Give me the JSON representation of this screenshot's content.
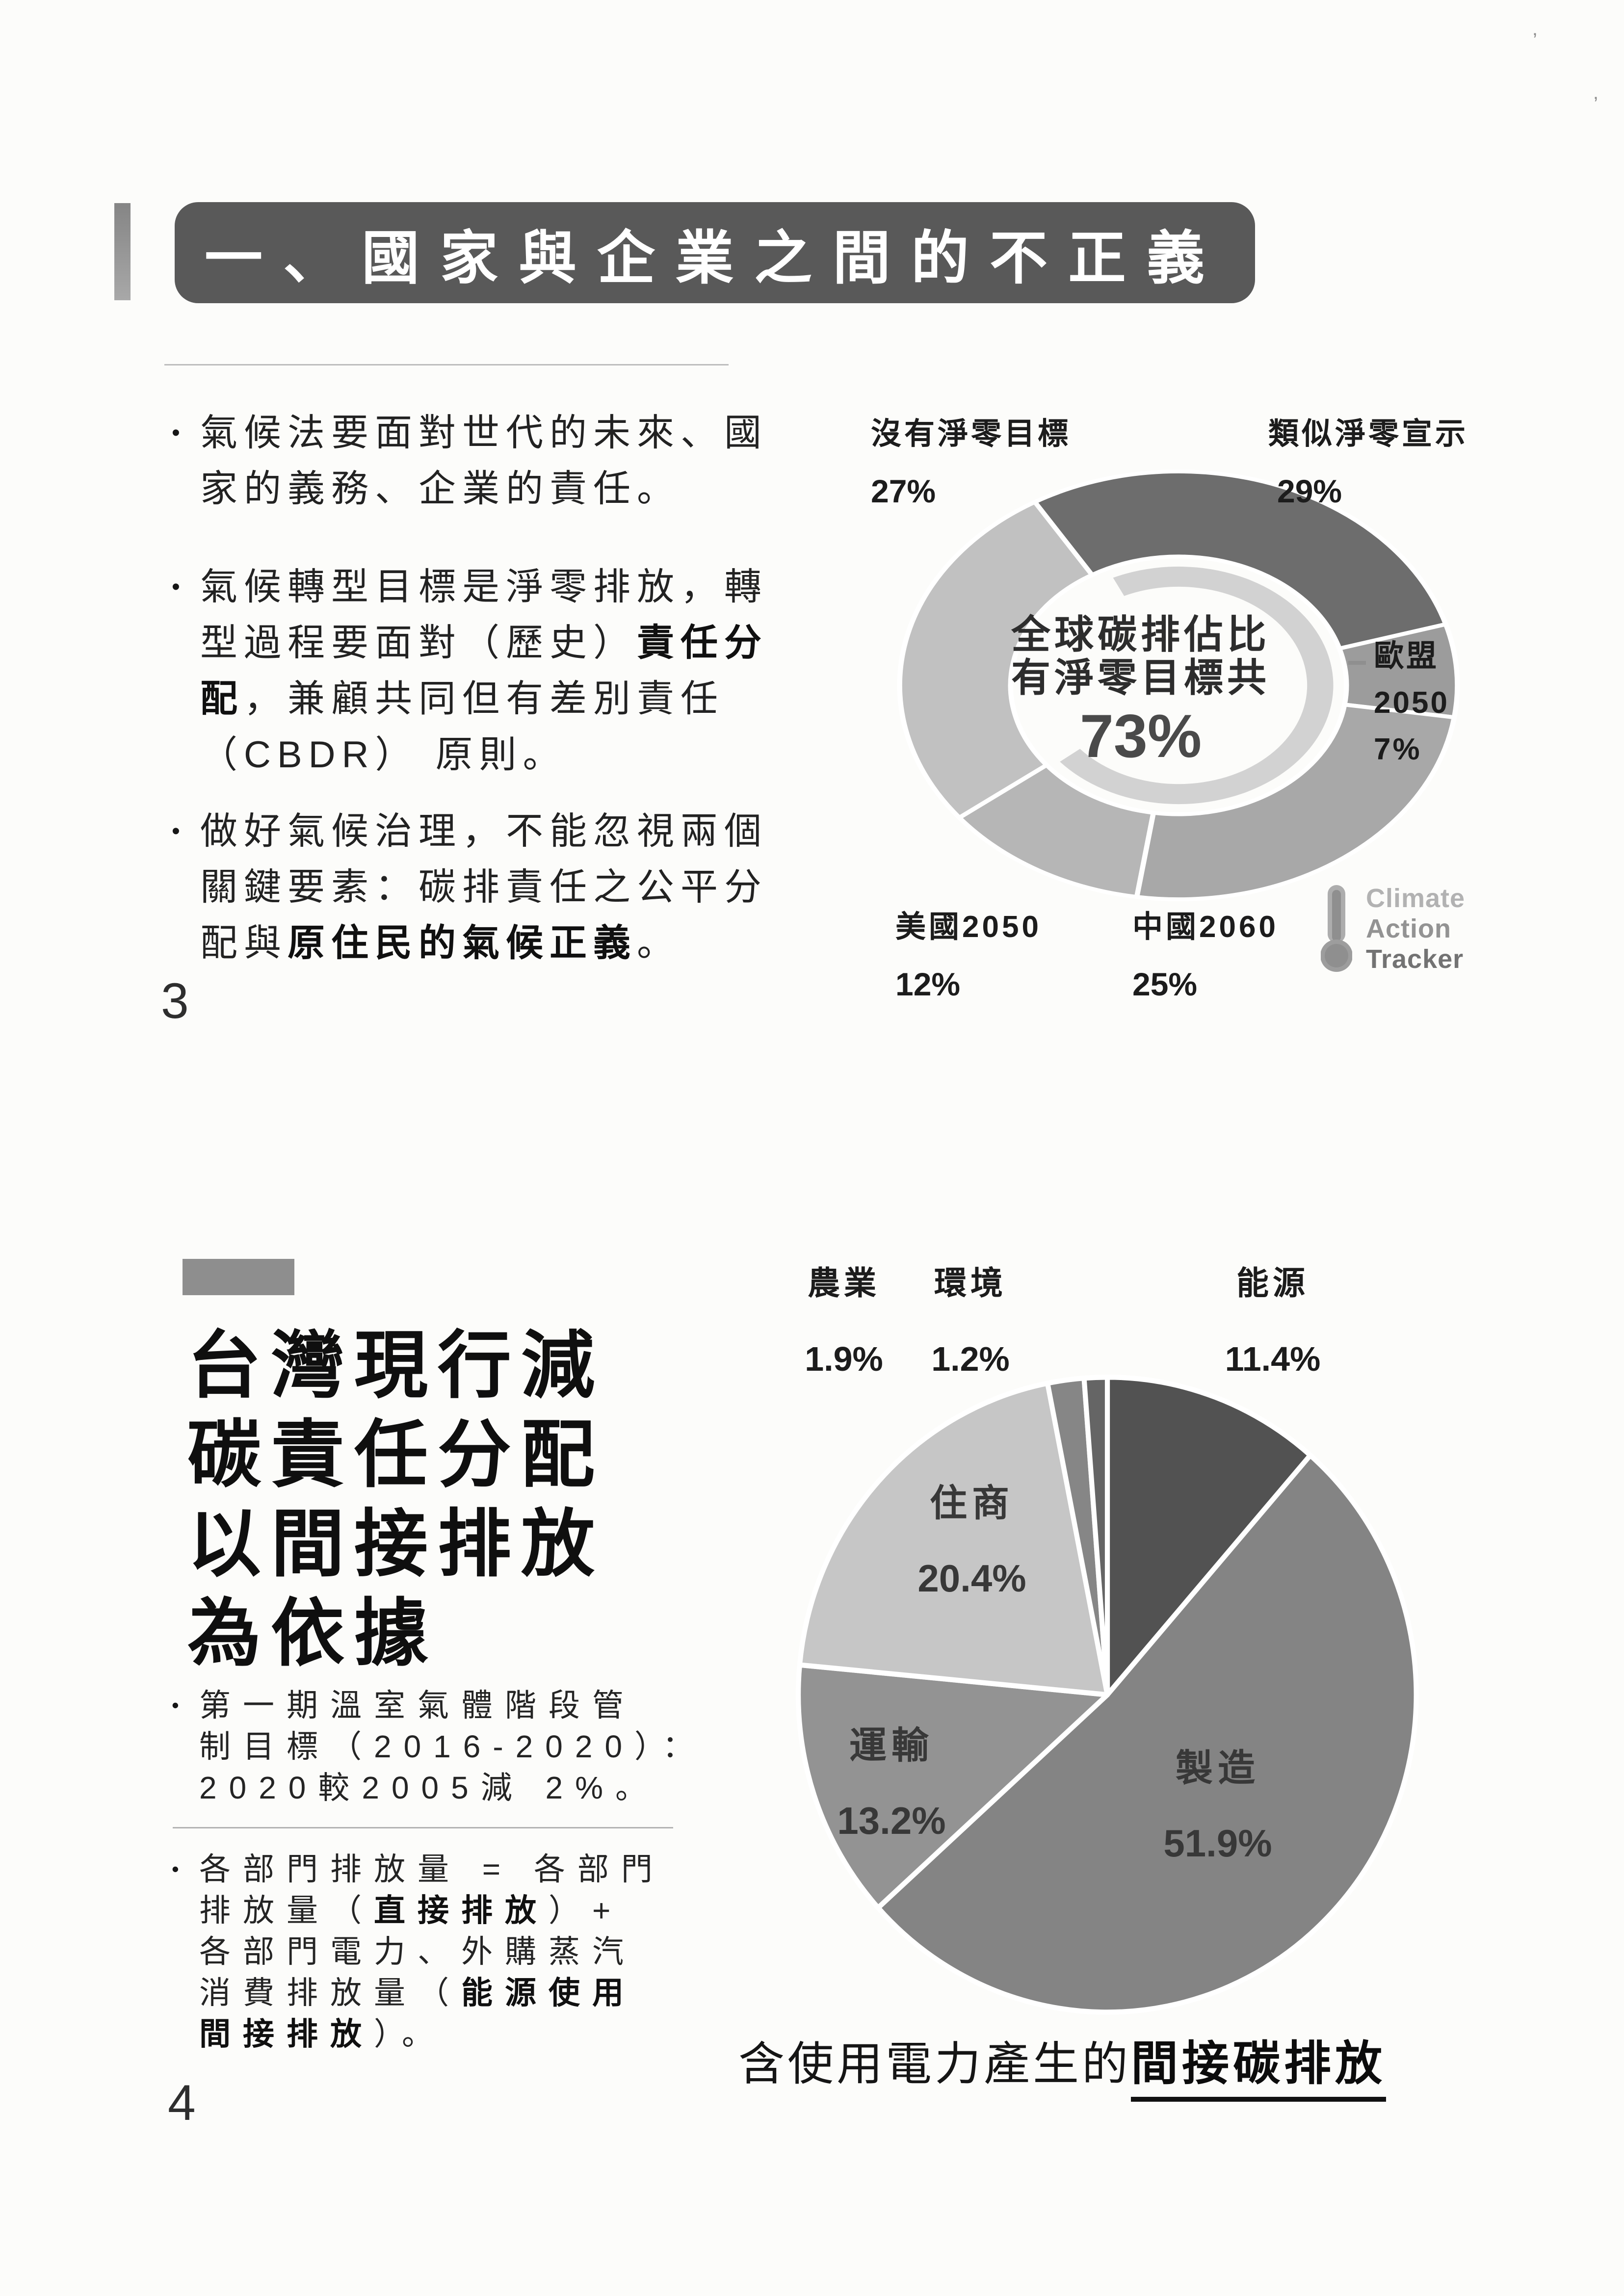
{
  "slide3": {
    "page_number": "3",
    "title": "一、國家與企業之間的不正義",
    "bullets": [
      {
        "lines": [
          [
            {
              "t": "氣候法要面對世代的未來、國"
            }
          ],
          [
            {
              "t": "家的義務、企業的責任。"
            }
          ]
        ]
      },
      {
        "lines": [
          [
            {
              "t": "氣候轉型目標是淨零排放，轉"
            }
          ],
          [
            {
              "t": "型過程要面對（歷史）"
            },
            {
              "t": "責任分",
              "b": true
            }
          ],
          [
            {
              "t": "配",
              "b": true
            },
            {
              "t": "，兼顧共同但有差別責任"
            }
          ],
          [
            {
              "t": "（CBDR） 原則。"
            }
          ]
        ]
      },
      {
        "lines": [
          [
            {
              "t": "做好氣候治理，不能忽視兩個"
            }
          ],
          [
            {
              "t": "關鍵要素：碳排責任之公平分"
            }
          ],
          [
            {
              "t": "配與"
            },
            {
              "t": "原住民的氣候正義",
              "b": true
            },
            {
              "t": "。"
            }
          ]
        ]
      }
    ],
    "donut_center": {
      "line1": "全球碳排佔比",
      "line2": "有淨零目標共",
      "value": "73%"
    },
    "donut_labels": {
      "no_target_name": "沒有淨零目標",
      "no_target_value": "27%",
      "similar_name": "類似淨零宣示",
      "similar_value": "29%",
      "eu_name": "歐盟",
      "eu_year": "2050",
      "eu_value": "7%",
      "usa_name": "美國2050",
      "usa_value": "12%",
      "china_name": "中國2060",
      "china_value": "25%"
    },
    "logo": {
      "line1": "Climate",
      "line2": "Action",
      "line3": "Tracker"
    }
  },
  "slide4": {
    "page_number": "4",
    "title_line1": "台灣現行減",
    "title_line2": "碳責任分配",
    "title_line3": "以間接排放",
    "title_line4": "為依據",
    "bullets_first": [
      {
        "lines": [
          [
            {
              "t": "第一期溫室氣體階段管"
            }
          ],
          [
            {
              "t": "制目標（2016-2020）："
            }
          ],
          [
            {
              "t": "2020較2005減 2%。"
            }
          ]
        ]
      }
    ],
    "bullets_second": [
      {
        "lines": [
          [
            {
              "t": "各部門排放量 = 各部門"
            }
          ],
          [
            {
              "t": "排放量（"
            },
            {
              "t": "直接排放",
              "b": true
            },
            {
              "t": "）+"
            }
          ],
          [
            {
              "t": "各部門電力、外購蒸汽"
            }
          ],
          [
            {
              "t": "消費排放量（"
            },
            {
              "t": "能源使用",
              "b": true
            }
          ],
          [
            {
              "t": "間接排放",
              "b": true
            },
            {
              "t": "）。"
            }
          ]
        ]
      }
    ],
    "pie_labels": {
      "agriculture_name": "農業",
      "agriculture_value": "1.9%",
      "environment_name": "環境",
      "environment_value": "1.2%",
      "energy_name": "能源",
      "energy_value": "11.4%",
      "residential_name": "住商",
      "residential_value": "20.4%",
      "transport_name": "運輸",
      "transport_value": "13.2%",
      "manufacturing_name": "製造",
      "manufacturing_value": "51.9%"
    },
    "caption_regular": "含使用電力產生的",
    "caption_emphasis": "間接碳排放"
  },
  "chart_data": [
    {
      "type": "pie",
      "variant": "donut",
      "title": "全球碳排佔比有淨零目標共 73%",
      "categories": [
        "類似淨零宣示",
        "歐盟 2050",
        "中國2060",
        "美國2050",
        "沒有淨零目標"
      ],
      "values": [
        29,
        7,
        25,
        12,
        27
      ],
      "colors": [
        "#6d6d6d",
        "#9c9c9c",
        "#a8a8a8",
        "#b6b6b6",
        "#c1c1c1"
      ],
      "rotation_deg": -31,
      "center_value": "73%",
      "accent_arc": {
        "start_deg": -25,
        "end_deg": 230,
        "color": "#d2d2d2"
      },
      "source": "Climate Action Tracker",
      "legend_position": "outside"
    },
    {
      "type": "pie",
      "categories": [
        "能源",
        "製造",
        "運輸",
        "住商",
        "農業",
        "環境"
      ],
      "values": [
        11.4,
        51.9,
        13.2,
        20.4,
        1.9,
        1.2
      ],
      "colors": [
        "#525252",
        "#848484",
        "#939393",
        "#c6c6c6",
        "#868686",
        "#656565"
      ],
      "rotation_deg": 0,
      "caption": "含使用電力產生的間接碳排放",
      "legend_position": "outside-and-inside"
    }
  ]
}
